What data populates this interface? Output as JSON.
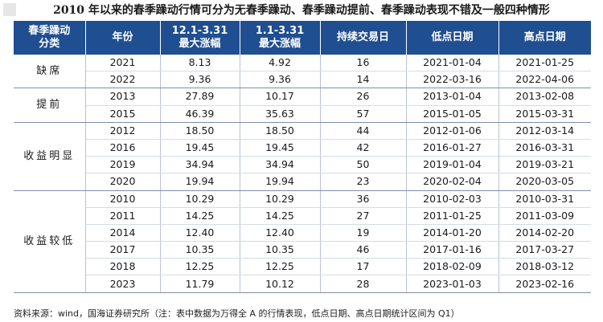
{
  "title": "2010 年以来的春季躁动行情可分为无春季躁动、春季躁动提前、春季躁动表现不错及一般四种情形",
  "table": {
    "headers": [
      {
        "line1": "春季躁动",
        "line2": "分类"
      },
      {
        "line1": "年份",
        "line2": ""
      },
      {
        "line1": "12.1-3.31",
        "line2": "最大涨幅"
      },
      {
        "line1": "1.1-3.31",
        "line2": "最大涨幅"
      },
      {
        "line1": "持续交易日",
        "line2": ""
      },
      {
        "line1": "低点日期",
        "line2": ""
      },
      {
        "line1": "高点日期",
        "line2": ""
      }
    ],
    "groups": [
      {
        "category": "缺席",
        "rows": [
          {
            "year": "2021",
            "gain_dec": "8.13",
            "gain_jan": "4.92",
            "days": "16",
            "low": "2021-01-04",
            "high": "2021-01-25"
          },
          {
            "year": "2022",
            "gain_dec": "9.36",
            "gain_jan": "9.36",
            "days": "14",
            "low": "2022-03-16",
            "high": "2022-04-06"
          }
        ]
      },
      {
        "category": "提前",
        "rows": [
          {
            "year": "2013",
            "gain_dec": "27.89",
            "gain_jan": "10.17",
            "days": "26",
            "low": "2013-01-04",
            "high": "2013-02-08"
          },
          {
            "year": "2015",
            "gain_dec": "46.39",
            "gain_jan": "35.63",
            "days": "57",
            "low": "2015-01-05",
            "high": "2015-03-31"
          }
        ]
      },
      {
        "category": "收益明显",
        "rows": [
          {
            "year": "2012",
            "gain_dec": "18.50",
            "gain_jan": "18.50",
            "days": "44",
            "low": "2012-01-06",
            "high": "2012-03-14"
          },
          {
            "year": "2016",
            "gain_dec": "19.45",
            "gain_jan": "19.45",
            "days": "42",
            "low": "2016-01-27",
            "high": "2016-03-31"
          },
          {
            "year": "2019",
            "gain_dec": "34.94",
            "gain_jan": "34.94",
            "days": "50",
            "low": "2019-01-04",
            "high": "2019-03-21"
          },
          {
            "year": "2020",
            "gain_dec": "19.94",
            "gain_jan": "19.94",
            "days": "23",
            "low": "2020-02-04",
            "high": "2020-03-05"
          }
        ]
      },
      {
        "category": "收益较低",
        "rows": [
          {
            "year": "2010",
            "gain_dec": "10.29",
            "gain_jan": "10.29",
            "days": "36",
            "low": "2010-02-03",
            "high": "2010-03-31"
          },
          {
            "year": "2011",
            "gain_dec": "14.25",
            "gain_jan": "14.25",
            "days": "27",
            "low": "2011-01-25",
            "high": "2011-03-09"
          },
          {
            "year": "2014",
            "gain_dec": "12.40",
            "gain_jan": "12.40",
            "days": "19",
            "low": "2014-01-20",
            "high": "2014-02-20"
          },
          {
            "year": "2017",
            "gain_dec": "10.35",
            "gain_jan": "10.35",
            "days": "46",
            "low": "2017-01-16",
            "high": "2017-03-27"
          },
          {
            "year": "2018",
            "gain_dec": "12.25",
            "gain_jan": "12.25",
            "days": "17",
            "low": "2018-02-09",
            "high": "2018-03-12"
          },
          {
            "year": "2023",
            "gain_dec": "11.79",
            "gain_jan": "10.12",
            "days": "28",
            "low": "2023-01-03",
            "high": "2023-02-16"
          }
        ]
      }
    ]
  },
  "footer": "资料来源：wind，国海证券研究所（注：表中数据为万得全 A 的行情表现，低点日期、高点日期统计区间为 Q1）",
  "colors": {
    "header_bg": "#1f4e91",
    "header_text": "#ffffff"
  }
}
